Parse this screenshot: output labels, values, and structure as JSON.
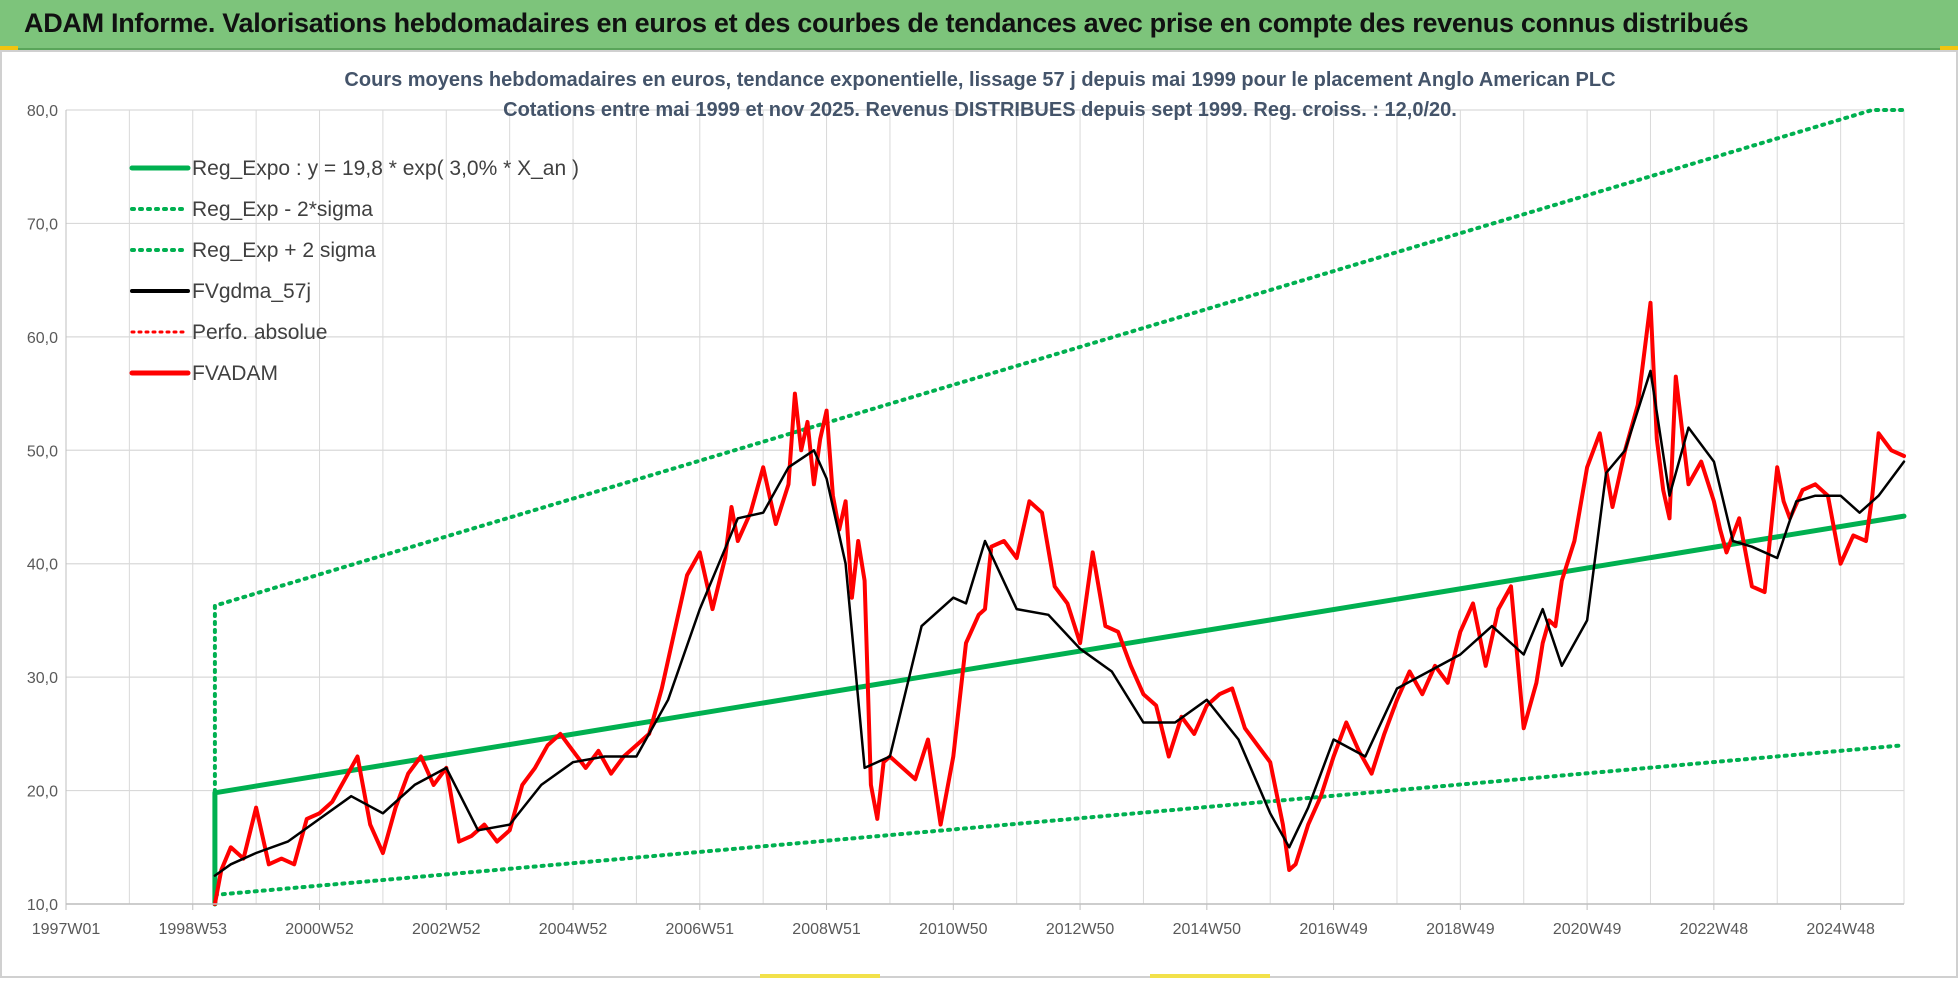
{
  "header": {
    "title": "ADAM Informe. Valorisations hebdomadaires en euros et des courbes de tendances avec prise en compte des revenus connus distribués"
  },
  "colors": {
    "header_bg": "#7dc47b",
    "reg_expo": "#00b050",
    "fv_gdma": "#000000",
    "perfo": "#ff0000",
    "fv_adam": "#ff0000",
    "grid": "#d9d9d9"
  },
  "chart_data": {
    "type": "line",
    "title": "Cours moyens hebdomadaires en euros, tendance exponentielle, lissage 57 j depuis mai 1999 pour le placement Anglo American PLC",
    "subtitle": "Cotations entre mai 1999 et nov 2025. Revenus DISTRIBUES depuis sept 1999. Reg. croiss. : 12,0/20.",
    "xlabel": "",
    "ylabel": "",
    "xlim": [
      1997.0,
      2026.0
    ],
    "ylim": [
      10,
      80
    ],
    "y_ticks": [
      "10,0",
      "20,0",
      "30,0",
      "40,0",
      "50,0",
      "60,0",
      "70,0",
      "80,0"
    ],
    "y_tick_values": [
      10,
      20,
      30,
      40,
      50,
      60,
      70,
      80
    ],
    "x_ticks": [
      "1997W01",
      "1998W53",
      "2000W52",
      "2002W52",
      "2004W52",
      "2006W51",
      "2008W51",
      "2010W50",
      "2012W50",
      "2014W50",
      "2016W49",
      "2018W49",
      "2020W49",
      "2022W48",
      "2024W48"
    ],
    "x_tick_values": [
      1997.0,
      1999.0,
      2001.0,
      2003.0,
      2005.0,
      2007.0,
      2009.0,
      2011.0,
      2013.0,
      2015.0,
      2017.0,
      2019.0,
      2021.0,
      2023.0,
      2025.0
    ],
    "legend": [
      "Reg_Expo : y = 19,8 * exp( 3,0% *  X_an )",
      "Reg_Exp - 2*sigma",
      "Reg_Exp + 2 sigma",
      "FVgdma_57j",
      "Perfo. absolue",
      "FVADAM"
    ],
    "series": [
      {
        "name": "Reg_Expo : y = 19,8 * exp( 3,0% *  X_an )",
        "style": "solid",
        "x": [
          1999.35,
          1999.35,
          2026.0
        ],
        "values": [
          10.0,
          19.8,
          44.2
        ]
      },
      {
        "name": "Reg_Exp - 2*sigma",
        "style": "dotted",
        "x": [
          1999.35,
          2026.0
        ],
        "values": [
          10.8,
          24.0
        ]
      },
      {
        "name": "Reg_Exp + 2 sigma",
        "style": "dotted",
        "x": [
          1999.35,
          1999.35,
          2025.5,
          2026.0
        ],
        "values": [
          10.0,
          36.3,
          80.0,
          80.0
        ]
      },
      {
        "name": "FVgdma_57j",
        "style": "solid",
        "x": [
          1999.35,
          1999.6,
          2000.0,
          2000.5,
          2001.0,
          2001.5,
          2002.0,
          2002.5,
          2003.0,
          2003.5,
          2004.0,
          2004.5,
          2005.0,
          2005.5,
          2006.0,
          2006.5,
          2007.0,
          2007.3,
          2007.6,
          2008.0,
          2008.4,
          2008.8,
          2009.0,
          2009.3,
          2009.6,
          2010.0,
          2010.5,
          2011.0,
          2011.2,
          2011.5,
          2012.0,
          2012.5,
          2013.0,
          2013.5,
          2014.0,
          2014.5,
          2015.0,
          2015.5,
          2016.0,
          2016.3,
          2016.6,
          2017.0,
          2017.5,
          2018.0,
          2018.5,
          2019.0,
          2019.5,
          2020.0,
          2020.3,
          2020.6,
          2021.0,
          2021.3,
          2021.6,
          2022.0,
          2022.3,
          2022.6,
          2023.0,
          2023.3,
          2023.6,
          2024.0,
          2024.3,
          2024.6,
          2025.0,
          2025.3,
          2025.6,
          2026.0
        ],
        "values": [
          12.5,
          13.5,
          14.5,
          15.5,
          17.5,
          19.5,
          18.0,
          20.5,
          22.0,
          16.5,
          17.0,
          20.5,
          22.5,
          23.0,
          23.0,
          28.0,
          36.0,
          40.0,
          44.0,
          44.5,
          48.5,
          50.0,
          47.5,
          40.0,
          22.0,
          23.0,
          34.5,
          37.0,
          36.5,
          42.0,
          36.0,
          35.5,
          32.5,
          30.5,
          26.0,
          26.0,
          28.0,
          24.5,
          18.0,
          15.0,
          18.5,
          24.5,
          23.0,
          29.0,
          30.5,
          32.0,
          34.5,
          32.0,
          36.0,
          31.0,
          35.0,
          48.0,
          50.0,
          57.0,
          46.0,
          52.0,
          49.0,
          42.0,
          41.5,
          40.5,
          45.5,
          46.0,
          46.0,
          44.5,
          46.0,
          49.0
        ]
      },
      {
        "name": "FVADAM",
        "style": "solid-thick",
        "x": [
          1999.35,
          1999.45,
          1999.6,
          1999.8,
          2000.0,
          2000.2,
          2000.4,
          2000.6,
          2000.8,
          2001.0,
          2001.2,
          2001.4,
          2001.6,
          2001.8,
          2002.0,
          2002.2,
          2002.4,
          2002.6,
          2002.8,
          2003.0,
          2003.2,
          2003.4,
          2003.6,
          2003.8,
          2004.0,
          2004.2,
          2004.4,
          2004.6,
          2004.8,
          2005.0,
          2005.2,
          2005.4,
          2005.6,
          2005.8,
          2006.0,
          2006.2,
          2006.4,
          2006.6,
          2006.8,
          2007.0,
          2007.2,
          2007.4,
          2007.5,
          2007.6,
          2007.8,
          2008.0,
          2008.2,
          2008.4,
          2008.5,
          2008.6,
          2008.7,
          2008.8,
          2008.9,
          2009.0,
          2009.1,
          2009.2,
          2009.3,
          2009.4,
          2009.5,
          2009.6,
          2009.7,
          2009.8,
          2009.9,
          2010.0,
          2010.2,
          2010.4,
          2010.6,
          2010.8,
          2011.0,
          2011.2,
          2011.4,
          2011.5,
          2011.6,
          2011.8,
          2012.0,
          2012.2,
          2012.4,
          2012.6,
          2012.8,
          2013.0,
          2013.2,
          2013.4,
          2013.6,
          2013.8,
          2014.0,
          2014.2,
          2014.4,
          2014.6,
          2014.8,
          2015.0,
          2015.2,
          2015.4,
          2015.6,
          2015.8,
          2016.0,
          2016.2,
          2016.3,
          2016.4,
          2016.6,
          2016.8,
          2017.0,
          2017.2,
          2017.4,
          2017.6,
          2017.8,
          2018.0,
          2018.2,
          2018.4,
          2018.6,
          2018.8,
          2019.0,
          2019.2,
          2019.4,
          2019.6,
          2019.8,
          2020.0,
          2020.2,
          2020.3,
          2020.4,
          2020.5,
          2020.6,
          2020.8,
          2021.0,
          2021.2,
          2021.4,
          2021.6,
          2021.8,
          2022.0,
          2022.1,
          2022.2,
          2022.3,
          2022.4,
          2022.6,
          2022.8,
          2023.0,
          2023.1,
          2023.2,
          2023.4,
          2023.6,
          2023.8,
          2024.0,
          2024.1,
          2024.2,
          2024.4,
          2024.6,
          2024.8,
          2025.0,
          2025.2,
          2025.4,
          2025.5,
          2025.6,
          2025.8,
          2026.0
        ],
        "values": [
          10.0,
          13.0,
          15.0,
          14.0,
          18.5,
          13.5,
          14.0,
          13.5,
          17.5,
          18.0,
          19.0,
          21.0,
          23.0,
          17.0,
          14.5,
          18.5,
          21.5,
          23.0,
          20.5,
          22.0,
          15.5,
          16.0,
          17.0,
          15.5,
          16.5,
          20.5,
          22.0,
          24.0,
          25.0,
          23.5,
          22.0,
          23.5,
          21.5,
          23.0,
          24.0,
          25.0,
          29.0,
          34.0,
          39.0,
          41.0,
          36.0,
          40.5,
          45.0,
          42.0,
          44.5,
          48.5,
          43.5,
          47.0,
          55.0,
          50.0,
          52.5,
          47.0,
          51.0,
          53.5,
          46.0,
          43.0,
          45.5,
          37.0,
          42.0,
          38.5,
          20.5,
          17.5,
          22.5,
          23.0,
          22.0,
          21.0,
          24.5,
          17.0,
          23.0,
          33.0,
          35.5,
          36.0,
          41.5,
          42.0,
          40.5,
          45.5,
          44.5,
          38.0,
          36.5,
          33.0,
          41.0,
          34.5,
          34.0,
          31.0,
          28.5,
          27.5,
          23.0,
          26.5,
          25.0,
          27.5,
          28.5,
          29.0,
          25.5,
          24.0,
          22.5,
          17.0,
          13.0,
          13.5,
          17.0,
          19.5,
          23.0,
          26.0,
          23.5,
          21.5,
          25.0,
          28.0,
          30.5,
          28.5,
          31.0,
          29.5,
          34.0,
          36.5,
          31.0,
          36.0,
          38.0,
          25.5,
          29.5,
          33.0,
          35.0,
          34.5,
          38.5,
          42.0,
          48.5,
          51.5,
          45.0,
          50.0,
          54.0,
          63.0,
          51.0,
          46.5,
          44.0,
          56.5,
          47.0,
          49.0,
          45.5,
          43.0,
          41.0,
          44.0,
          38.0,
          37.5,
          48.5,
          45.5,
          44.0,
          46.5,
          47.0,
          46.0,
          40.0,
          42.5,
          42.0,
          46.0,
          51.5,
          50.0,
          49.5
        ]
      }
    ]
  }
}
